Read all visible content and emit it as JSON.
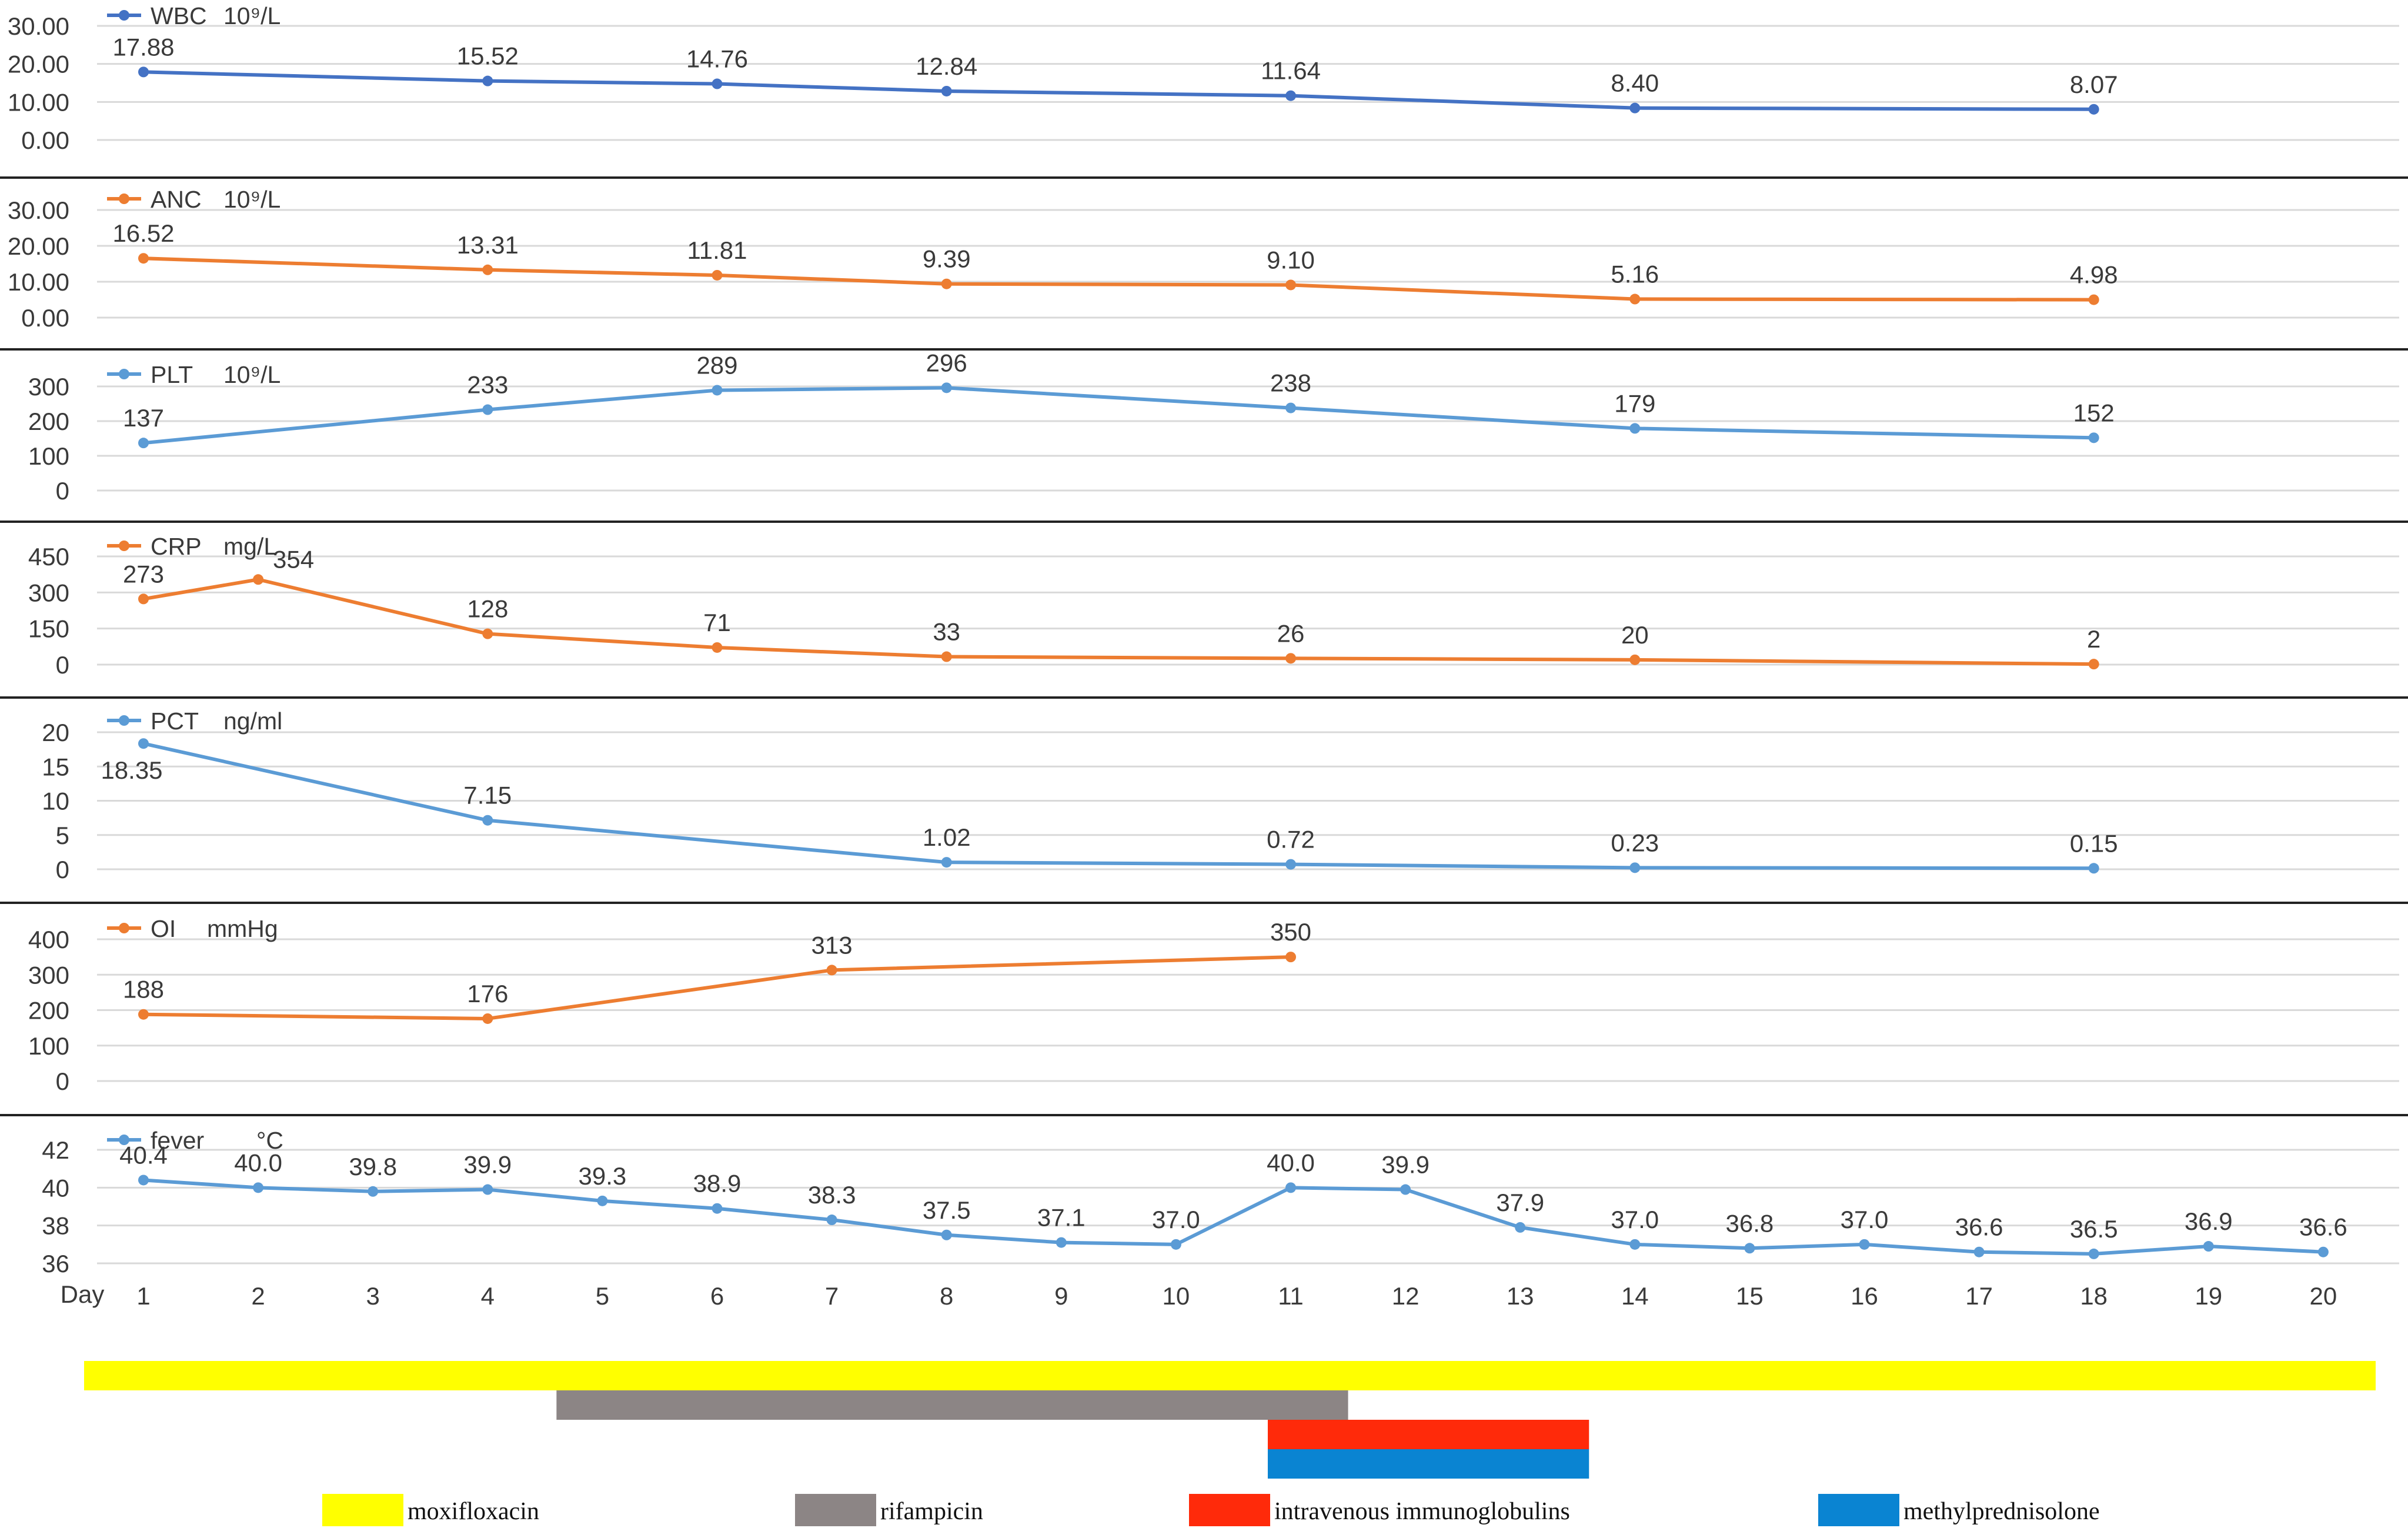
{
  "chart_data": [
    {
      "type": "line",
      "series_name": "WBC",
      "unit": "10⁹/L",
      "color": "#4472c4",
      "yticks": [
        "30.00",
        "20.00",
        "10.00",
        "0.00"
      ],
      "ylim": [
        0,
        30
      ],
      "x": [
        1,
        4,
        6,
        8,
        11,
        14,
        18
      ],
      "values": [
        17.88,
        15.52,
        14.76,
        12.84,
        11.64,
        8.4,
        8.07
      ],
      "labels": [
        "17.88",
        "15.52",
        "14.76",
        "12.84",
        "11.64",
        "8.40",
        "8.07"
      ]
    },
    {
      "type": "line",
      "series_name": "ANC",
      "unit": "10⁹/L",
      "color": "#ed7d31",
      "yticks": [
        "30.00",
        "20.00",
        "10.00",
        "0.00"
      ],
      "ylim": [
        0,
        30
      ],
      "x": [
        1,
        4,
        6,
        8,
        11,
        14,
        18
      ],
      "values": [
        16.52,
        13.31,
        11.81,
        9.39,
        9.1,
        5.16,
        4.98
      ],
      "labels": [
        "16.52",
        "13.31",
        "11.81",
        "9.39",
        "9.10",
        "5.16",
        "4.98"
      ]
    },
    {
      "type": "line",
      "series_name": "PLT",
      "unit": "10⁹/L",
      "color": "#5b9bd5",
      "yticks": [
        "300",
        "200",
        "100",
        "0"
      ],
      "ylim": [
        0,
        300
      ],
      "x": [
        1,
        4,
        6,
        8,
        11,
        14,
        18
      ],
      "values": [
        137,
        233,
        289,
        296,
        238,
        179,
        152
      ],
      "labels": [
        "137",
        "233",
        "289",
        "296",
        "238",
        "179",
        "152"
      ]
    },
    {
      "type": "line",
      "series_name": "CRP",
      "unit": "mg/L",
      "color": "#ed7d31",
      "yticks": [
        "450",
        "300",
        "150",
        "0"
      ],
      "ylim": [
        0,
        450
      ],
      "x": [
        1,
        2,
        4,
        6,
        8,
        11,
        14,
        18
      ],
      "values": [
        273,
        354,
        128,
        71,
        33,
        26,
        20,
        2
      ],
      "labels": [
        "273",
        "354",
        "128",
        "71",
        "33",
        "26",
        "20",
        "2"
      ]
    },
    {
      "type": "line",
      "series_name": "PCT",
      "unit": "ng/ml",
      "color": "#5b9bd5",
      "yticks": [
        "20",
        "15",
        "10",
        "5",
        "0"
      ],
      "ylim": [
        0,
        20
      ],
      "x": [
        1,
        4,
        8,
        11,
        14,
        18
      ],
      "values": [
        18.35,
        7.15,
        1.02,
        0.72,
        0.23,
        0.15
      ],
      "labels": [
        "18.35",
        "7.15",
        "1.02",
        "0.72",
        "0.23",
        "0.15"
      ]
    },
    {
      "type": "line",
      "series_name": "OI",
      "unit": "mmHg",
      "color": "#ed7d31",
      "yticks": [
        "400",
        "300",
        "200",
        "100",
        "0"
      ],
      "ylim": [
        0,
        400
      ],
      "x": [
        1,
        4,
        7,
        11
      ],
      "values": [
        188,
        176,
        313,
        350
      ],
      "labels": [
        "188",
        "176",
        "313",
        "350"
      ]
    },
    {
      "type": "line",
      "series_name": "fever",
      "unit": "°C",
      "color": "#5b9bd5",
      "yticks": [
        "42",
        "40",
        "38",
        "36"
      ],
      "ylim": [
        36,
        42
      ],
      "x": [
        1,
        2,
        3,
        4,
        5,
        6,
        7,
        8,
        9,
        10,
        11,
        12,
        13,
        14,
        15,
        16,
        17,
        18,
        19,
        20
      ],
      "values": [
        40.4,
        40.0,
        39.8,
        39.9,
        39.3,
        38.9,
        38.3,
        37.5,
        37.1,
        37.0,
        40.0,
        39.9,
        37.9,
        37.0,
        36.8,
        37.0,
        36.6,
        36.5,
        36.9,
        36.6
      ],
      "labels": [
        "40.4",
        "40.0",
        "39.8",
        "39.9",
        "39.3",
        "38.9",
        "38.3",
        "37.5",
        "37.1",
        "37.0",
        "40.0",
        "39.9",
        "37.9",
        "37.0",
        "36.8",
        "37.0",
        "36.6",
        "36.5",
        "36.9",
        "36.6"
      ]
    }
  ],
  "x_axis": {
    "label": "Day",
    "ticks": [
      "1",
      "2",
      "3",
      "4",
      "5",
      "6",
      "7",
      "8",
      "9",
      "10",
      "11",
      "12",
      "13",
      "14",
      "15",
      "16",
      "17",
      "18",
      "19",
      "20"
    ]
  },
  "treatments": [
    {
      "name": "moxifloxacin",
      "color": "#ffff00",
      "start_day": 0.5,
      "end_day": 20.5
    },
    {
      "name": "rifampicin",
      "color": "#8c8585",
      "start_day": 4.6,
      "end_day": 11.5
    },
    {
      "name": "intravenous immunoglobulins",
      "color": "#ff2a0a",
      "start_day": 10.8,
      "end_day": 13.6
    },
    {
      "name": "methylprednisolone",
      "color": "#0a84d2",
      "start_day": 10.8,
      "end_day": 13.6
    }
  ]
}
